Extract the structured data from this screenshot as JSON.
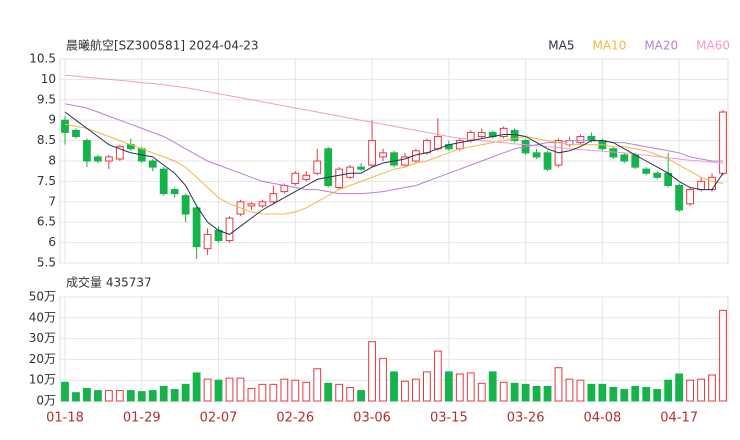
{
  "chart_data": [
    {
      "type": "candlestick",
      "title": "晨曦航空[SZ300581] 2024-04-23",
      "categories": [
        "01-18",
        null,
        null,
        null,
        null,
        null,
        null,
        "01-29",
        null,
        null,
        null,
        null,
        null,
        null,
        "02-07",
        null,
        null,
        null,
        null,
        null,
        null,
        "02-26",
        null,
        null,
        null,
        null,
        null,
        null,
        "03-06",
        null,
        null,
        null,
        null,
        null,
        null,
        "03-15",
        null,
        null,
        null,
        null,
        null,
        null,
        "03-26",
        null,
        null,
        null,
        null,
        null,
        null,
        "04-08",
        null,
        null,
        null,
        null,
        null,
        null,
        "04-17",
        null,
        null,
        null,
        null
      ],
      "open": [
        9.0,
        8.75,
        8.5,
        8.1,
        8.0,
        8.05,
        8.4,
        8.3,
        8.0,
        7.8,
        7.3,
        7.15,
        6.85,
        5.85,
        6.3,
        6.05,
        6.7,
        6.9,
        6.9,
        7.0,
        7.25,
        7.45,
        7.55,
        7.7,
        8.3,
        7.35,
        7.6,
        7.85,
        7.9,
        8.1,
        8.2,
        7.9,
        8.0,
        8.2,
        8.3,
        8.4,
        8.3,
        8.5,
        8.6,
        8.7,
        8.6,
        8.75,
        8.5,
        8.2,
        8.2,
        7.9,
        8.4,
        8.45,
        8.6,
        8.5,
        8.3,
        8.15,
        8.15,
        7.8,
        7.7,
        7.7,
        7.4,
        6.95,
        7.3,
        7.3,
        7.7
      ],
      "high": [
        9.1,
        8.8,
        8.55,
        8.15,
        8.15,
        8.4,
        8.55,
        8.35,
        8.05,
        7.85,
        7.35,
        7.2,
        6.9,
        6.35,
        6.4,
        6.65,
        7.05,
        7.0,
        7.05,
        7.4,
        7.45,
        7.75,
        7.75,
        8.3,
        8.35,
        7.85,
        7.9,
        7.95,
        9.0,
        8.3,
        8.25,
        8.2,
        8.3,
        8.55,
        9.05,
        8.5,
        8.55,
        8.75,
        8.8,
        8.75,
        8.85,
        8.8,
        8.55,
        8.3,
        8.25,
        8.55,
        8.6,
        8.65,
        8.7,
        8.55,
        8.35,
        8.2,
        8.2,
        7.85,
        7.75,
        8.2,
        7.45,
        7.35,
        7.6,
        7.7,
        9.25
      ],
      "low": [
        8.4,
        8.55,
        7.85,
        7.95,
        7.8,
        8.0,
        8.25,
        7.95,
        7.75,
        7.15,
        7.1,
        6.5,
        5.6,
        5.7,
        6.0,
        6.0,
        6.65,
        6.8,
        6.85,
        6.95,
        7.2,
        7.4,
        7.5,
        7.65,
        7.35,
        7.3,
        7.55,
        7.75,
        7.85,
        8.0,
        7.85,
        7.85,
        7.95,
        8.15,
        8.25,
        8.25,
        8.25,
        8.45,
        8.55,
        8.55,
        8.55,
        8.45,
        8.15,
        8.05,
        7.75,
        7.85,
        8.35,
        8.4,
        8.45,
        8.25,
        8.05,
        7.95,
        7.8,
        7.65,
        7.55,
        7.35,
        6.75,
        6.9,
        7.25,
        7.25,
        7.65
      ],
      "close": [
        8.7,
        8.6,
        8.0,
        8.0,
        8.1,
        8.35,
        8.3,
        8.0,
        7.85,
        7.2,
        7.2,
        6.7,
        5.9,
        6.2,
        6.05,
        6.6,
        7.0,
        6.95,
        7.0,
        7.2,
        7.4,
        7.7,
        7.65,
        8.0,
        7.4,
        7.8,
        7.85,
        7.8,
        8.5,
        8.2,
        7.9,
        8.1,
        8.25,
        8.5,
        8.6,
        8.3,
        8.5,
        8.7,
        8.7,
        8.6,
        8.8,
        8.5,
        8.2,
        8.1,
        7.8,
        8.5,
        8.5,
        8.6,
        8.5,
        8.3,
        8.1,
        8.0,
        7.85,
        7.7,
        7.6,
        7.4,
        6.8,
        7.3,
        7.5,
        7.6,
        9.2
      ],
      "up_color": "#e8393f",
      "down_color": "#16b34a",
      "series": [
        {
          "name": "MA5",
          "color": "#2b2f55",
          "values": [
            9.2,
            9.0,
            8.8,
            8.6,
            8.4,
            8.3,
            8.2,
            8.15,
            8.1,
            7.9,
            7.7,
            7.4,
            6.9,
            6.5,
            6.3,
            6.2,
            6.4,
            6.6,
            6.8,
            6.95,
            7.1,
            7.25,
            7.4,
            7.55,
            7.6,
            7.65,
            7.7,
            7.7,
            7.85,
            7.95,
            8.0,
            8.05,
            8.15,
            8.2,
            8.3,
            8.4,
            8.45,
            8.5,
            8.55,
            8.6,
            8.65,
            8.65,
            8.6,
            8.45,
            8.3,
            8.2,
            8.25,
            8.35,
            8.5,
            8.5,
            8.45,
            8.3,
            8.15,
            8.0,
            7.85,
            7.7,
            7.5,
            7.35,
            7.3,
            7.3,
            7.7
          ]
        },
        {
          "name": "MA10",
          "color": "#f4b740",
          "values": [
            8.9,
            8.85,
            8.8,
            8.7,
            8.6,
            8.5,
            8.4,
            8.3,
            8.2,
            8.1,
            8.0,
            7.85,
            7.6,
            7.35,
            7.1,
            6.95,
            6.85,
            6.75,
            6.7,
            6.7,
            6.7,
            6.75,
            6.85,
            7.0,
            7.15,
            7.3,
            7.4,
            7.5,
            7.6,
            7.7,
            7.8,
            7.85,
            7.95,
            8.0,
            8.1,
            8.2,
            8.3,
            8.35,
            8.4,
            8.45,
            8.5,
            8.55,
            8.6,
            8.55,
            8.5,
            8.45,
            8.4,
            8.4,
            8.4,
            8.4,
            8.35,
            8.35,
            8.3,
            8.25,
            8.15,
            8.05,
            7.9,
            7.75,
            7.6,
            7.5,
            7.45
          ]
        },
        {
          "name": "MA20",
          "color": "#b77fd8",
          "values": [
            9.4,
            9.35,
            9.3,
            9.2,
            9.1,
            9.0,
            8.9,
            8.8,
            8.7,
            8.6,
            8.45,
            8.3,
            8.15,
            8.0,
            7.9,
            7.8,
            7.7,
            7.6,
            7.5,
            7.45,
            7.4,
            7.35,
            7.3,
            7.3,
            7.25,
            7.2,
            7.2,
            7.2,
            7.22,
            7.25,
            7.3,
            7.35,
            7.4,
            7.5,
            7.6,
            7.7,
            7.8,
            7.9,
            8.0,
            8.1,
            8.2,
            8.3,
            8.35,
            8.4,
            8.45,
            8.45,
            8.5,
            8.5,
            8.5,
            8.5,
            8.45,
            8.45,
            8.4,
            8.35,
            8.3,
            8.25,
            8.2,
            8.1,
            8.05,
            8.0,
            8.0
          ]
        },
        {
          "name": "MA60",
          "color": "#f29bcf",
          "values": [
            10.1,
            10.08,
            10.05,
            10.03,
            10.0,
            9.98,
            9.95,
            9.92,
            9.9,
            9.87,
            9.83,
            9.8,
            9.75,
            9.7,
            9.65,
            9.6,
            9.55,
            9.5,
            9.45,
            9.4,
            9.35,
            9.3,
            9.25,
            9.2,
            9.15,
            9.1,
            9.05,
            9.0,
            8.95,
            8.9,
            8.85,
            8.8,
            8.75,
            8.7,
            8.65,
            8.6,
            8.56,
            8.53,
            8.5,
            8.47,
            8.45,
            8.42,
            8.4,
            8.38,
            8.35,
            8.33,
            8.3,
            8.28,
            8.26,
            8.24,
            8.22,
            8.2,
            8.17,
            8.14,
            8.11,
            8.08,
            8.05,
            8.02,
            8.0,
            7.97,
            7.95
          ]
        }
      ],
      "ylim": [
        5.5,
        10.5
      ],
      "yticks": [
        5.5,
        6,
        6.5,
        7,
        7.5,
        8,
        8.5,
        9,
        9.5,
        10,
        10.5
      ],
      "grid": true
    },
    {
      "type": "bar",
      "title": "成交量 435737",
      "values": [
        9,
        4,
        6,
        5,
        5,
        5,
        5,
        4.5,
        5,
        7,
        5.5,
        8,
        13.5,
        10.5,
        10,
        11,
        11,
        6,
        8,
        8,
        10.5,
        10,
        9,
        15.5,
        8.5,
        8,
        6.5,
        5,
        28.5,
        20.5,
        14,
        9.5,
        10.5,
        14,
        24,
        14,
        13,
        13.5,
        8.5,
        14,
        9,
        8.5,
        8,
        7,
        7,
        16,
        10.5,
        10,
        8,
        8,
        6.5,
        5.5,
        7,
        6.5,
        5.5,
        10,
        13,
        10,
        10.5,
        12.5,
        43.5737
      ],
      "ylim": [
        0,
        50
      ],
      "yticks": [
        {
          "value": 0,
          "label": "0万"
        },
        {
          "value": 10,
          "label": "10万"
        },
        {
          "value": 20,
          "label": "20万"
        },
        {
          "value": 30,
          "label": "30万"
        },
        {
          "value": 40,
          "label": "40万"
        },
        {
          "value": 50,
          "label": "50万"
        }
      ],
      "grid": true
    }
  ]
}
